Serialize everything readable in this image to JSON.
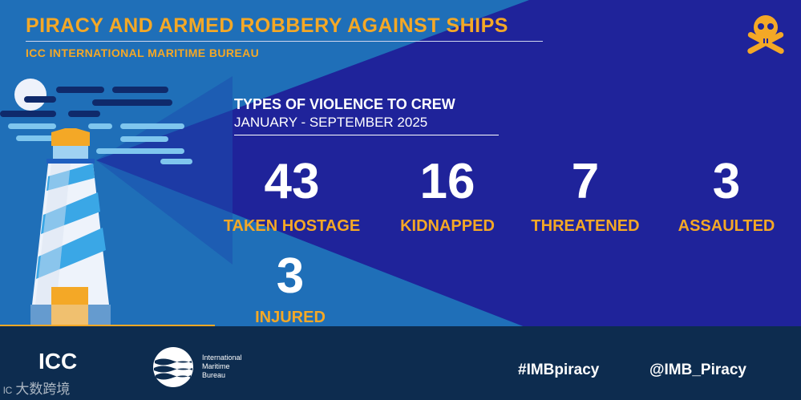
{
  "header": {
    "title": "PIRACY AND ARMED ROBBERY AGAINST SHIPS",
    "subtitle": "ICC INTERNATIONAL MARITIME BUREAU"
  },
  "section": {
    "title": "TYPES OF VIOLENCE TO CREW",
    "period": "JANUARY - SEPTEMBER 2025"
  },
  "stats": [
    {
      "value": "43",
      "label": "TAKEN HOSTAGE"
    },
    {
      "value": "16",
      "label": "KIDNAPPED"
    },
    {
      "value": "7",
      "label": "THREATENED"
    },
    {
      "value": "3",
      "label": "ASSAULTED"
    },
    {
      "value": "3",
      "label": "INJURED"
    }
  ],
  "footer": {
    "icc_logo": "ICC",
    "imb_logo_line1": "International",
    "imb_logo_line2": "Maritime",
    "imb_logo_line3": "Bureau",
    "hashtag": "#IMBpiracy",
    "handle": "@IMB_Piracy",
    "watermark": "大数跨境"
  },
  "icons": [
    "skull-crossbones-icon",
    "lighthouse-illustration",
    "moon-icon",
    "imb-waves-logo"
  ],
  "colors": {
    "accent": "#f4a826",
    "dark_navy": "#1f239a",
    "light_blue": "#1f6fb8",
    "footer_bg": "#0d2c4f"
  }
}
